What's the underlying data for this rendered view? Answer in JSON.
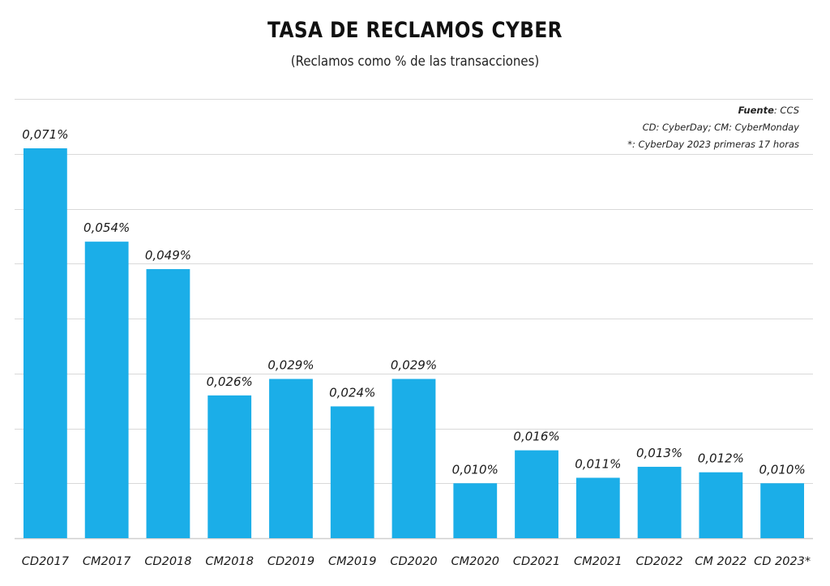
{
  "colors": {
    "bar": "#1baee8",
    "grid": "#d9d9d9",
    "axis": "#cfcfcf"
  },
  "notes": {
    "source_label": "Fuente",
    "source_value": ": CCS",
    "legend": "CD: CyberDay; CM: CyberMonday",
    "footnote": "*: CyberDay 2023 primeras 17 horas"
  },
  "chart_data": {
    "type": "bar",
    "title": "TASA DE RECLAMOS CYBER",
    "subtitle": "(Reclamos como % de las transacciones)",
    "categories": [
      "CD2017",
      "CM2017",
      "CD2018",
      "CM2018",
      "CD2019",
      "CM2019",
      "CD2020",
      "CM2020",
      "CD2021",
      "CM2021",
      "CD2022",
      "CM 2022",
      "CD 2023*"
    ],
    "values": [
      0.071,
      0.054,
      0.049,
      0.026,
      0.029,
      0.024,
      0.029,
      0.01,
      0.016,
      0.011,
      0.013,
      0.012,
      0.01
    ],
    "data_labels": [
      "0,071%",
      "0,054%",
      "0,049%",
      "0,026%",
      "0,029%",
      "0,024%",
      "0,029%",
      "0,010%",
      "0,016%",
      "0,011%",
      "0,013%",
      "0,012%",
      "0,010%"
    ],
    "ylim": [
      0,
      0.08
    ],
    "grid": true,
    "ytick_labels_shown": false
  }
}
